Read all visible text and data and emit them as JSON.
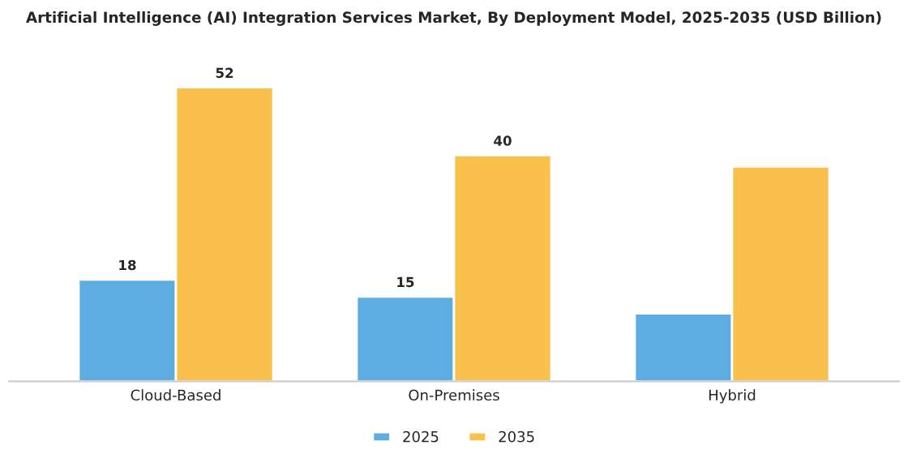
{
  "chart_data": {
    "type": "bar",
    "title": "Artificial Intelligence (AI) Integration Services Market, By Deployment Model, 2025-2035 (USD Billion)",
    "categories": [
      "Cloud-Based",
      "On-Premises",
      "Hybrid"
    ],
    "series": [
      {
        "name": "2025",
        "color": "#5dade2",
        "values": [
          18,
          15,
          12
        ],
        "value_labels": [
          "18",
          "15",
          null
        ]
      },
      {
        "name": "2035",
        "color": "#f9c04c",
        "values": [
          52,
          40,
          38
        ],
        "value_labels": [
          "52",
          "40",
          null
        ]
      }
    ],
    "legend": "bottom",
    "grid": false
  }
}
